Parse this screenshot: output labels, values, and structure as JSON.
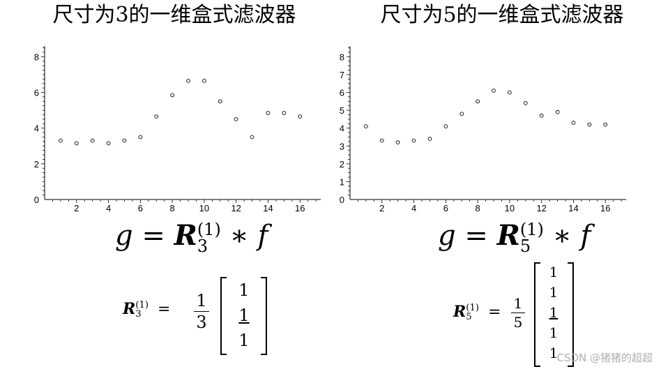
{
  "titles": {
    "left": "尺寸为3的一维盒式滤波器",
    "right": "尺寸为5的一维盒式滤波器"
  },
  "chart_data": [
    {
      "type": "scatter",
      "title": "尺寸为3的一维盒式滤波器",
      "x": [
        1,
        2,
        3,
        4,
        5,
        6,
        7,
        8,
        9,
        10,
        11,
        12,
        13,
        14,
        15,
        16
      ],
      "y": [
        3.3,
        3.15,
        3.3,
        3.15,
        3.3,
        3.5,
        4.65,
        5.85,
        6.65,
        6.65,
        5.5,
        4.5,
        3.5,
        4.85,
        4.85,
        4.65
      ],
      "xlim": [
        0,
        17.3
      ],
      "ylim": [
        0,
        8.6
      ],
      "xticks": [
        2,
        4,
        6,
        8,
        10,
        12,
        14,
        16
      ],
      "yticks": [
        0,
        2,
        4,
        6,
        8
      ],
      "grid": false
    },
    {
      "type": "scatter",
      "title": "尺寸为5的一维盒式滤波器",
      "x": [
        1,
        2,
        3,
        4,
        5,
        6,
        7,
        8,
        9,
        10,
        11,
        12,
        13,
        14,
        15,
        16
      ],
      "y": [
        4.1,
        3.3,
        3.2,
        3.3,
        3.4,
        4.1,
        4.8,
        5.5,
        6.1,
        6.0,
        5.4,
        4.7,
        4.9,
        4.3,
        4.2,
        4.2
      ],
      "xlim": [
        0,
        17.3
      ],
      "ylim": [
        0,
        8.6
      ],
      "xticks": [
        2,
        4,
        6,
        8,
        10,
        12,
        14,
        16
      ],
      "yticks": [
        0,
        1,
        2,
        3,
        4,
        5,
        6,
        7,
        8
      ],
      "grid": false
    }
  ],
  "equations": {
    "left": {
      "lhs": "g",
      "eq": "=",
      "R": "R",
      "sub": "3",
      "sup": "(1)",
      "op": "∗",
      "f": "f"
    },
    "right": {
      "lhs": "g",
      "eq": "=",
      "R": "R",
      "sub": "5",
      "sup": "(1)",
      "op": "∗",
      "f": "f"
    }
  },
  "matrices": {
    "left": {
      "R": "R",
      "sub": "3",
      "sup": "(1)",
      "eq": "=",
      "num": "1",
      "den": "3",
      "entries": [
        "1",
        "1",
        "1"
      ]
    },
    "right": {
      "R": "R",
      "sub": "5",
      "sup": "(1)",
      "eq": "=",
      "num": "1",
      "den": "5",
      "entries": [
        "1",
        "1",
        "1",
        "1",
        "1"
      ]
    }
  },
  "watermark": "CSDN @猪猪的超超"
}
